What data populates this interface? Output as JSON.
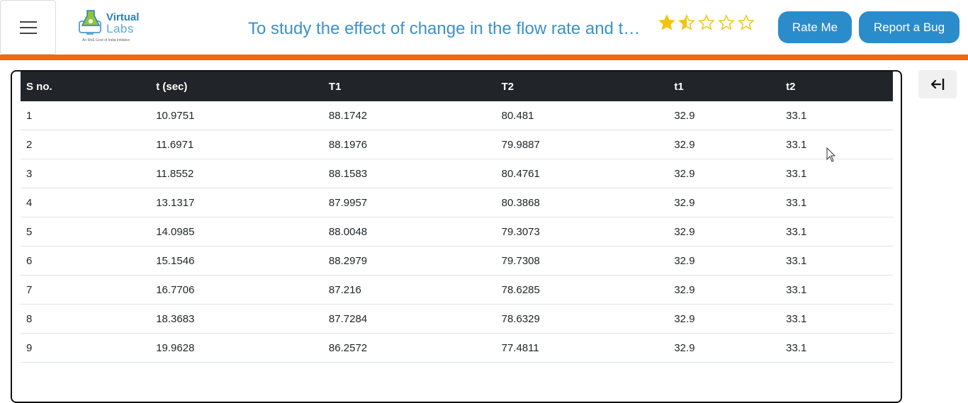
{
  "header": {
    "logo": {
      "word1": "Virtual",
      "word2": "Labs",
      "tagline": "An MoE Govt of India Initiative"
    },
    "title": "To study the effect of change in the flow rate and thermal parameters on heat exchanger effectiveness",
    "rating": {
      "value": 1.5,
      "max": 5
    },
    "rate_button": "Rate Me",
    "bug_button": "Report a Bug"
  },
  "colors": {
    "accent_orange": "#ee6b0d",
    "button_blue": "#2b8ccc",
    "table_header": "#212529",
    "star_gold": "#f1c40f"
  },
  "table": {
    "columns": [
      "S no.",
      "t (sec)",
      "T1",
      "T2",
      "t1",
      "t2"
    ],
    "rows": [
      [
        "1",
        "10.9751",
        "88.1742",
        "80.481",
        "32.9",
        "33.1"
      ],
      [
        "2",
        "11.6971",
        "88.1976",
        "79.9887",
        "32.9",
        "33.1"
      ],
      [
        "3",
        "11.8552",
        "88.1583",
        "80.4761",
        "32.9",
        "33.1"
      ],
      [
        "4",
        "13.1317",
        "87.9957",
        "80.3868",
        "32.9",
        "33.1"
      ],
      [
        "5",
        "14.0985",
        "88.0048",
        "79.3073",
        "32.9",
        "33.1"
      ],
      [
        "6",
        "15.1546",
        "88.2979",
        "79.7308",
        "32.9",
        "33.1"
      ],
      [
        "7",
        "16.7706",
        "87.216",
        "78.6285",
        "32.9",
        "33.1"
      ],
      [
        "8",
        "18.3683",
        "87.7284",
        "78.6329",
        "32.9",
        "33.1"
      ],
      [
        "9",
        "19.9628",
        "86.2572",
        "77.4811",
        "32.9",
        "33.1"
      ]
    ]
  },
  "icons": {
    "menu": "hamburger-icon",
    "collapse": "arrow-left-bar-icon",
    "cursor": "mouse-pointer-icon"
  }
}
